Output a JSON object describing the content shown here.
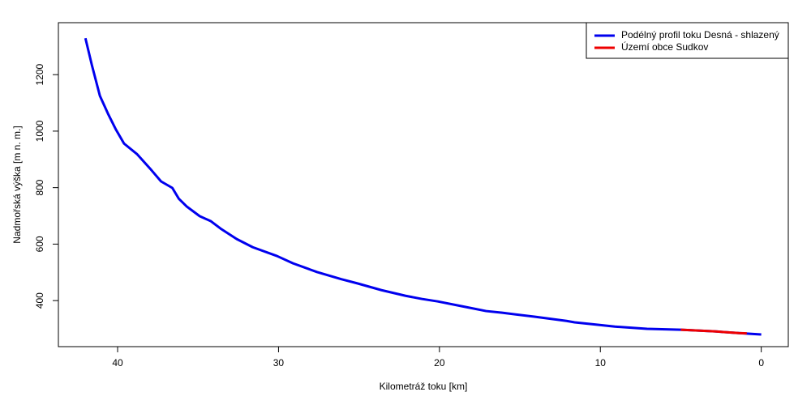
{
  "chart_data": {
    "type": "line",
    "xlabel": "Kilometráž toku [km]",
    "ylabel": "Nadmořská výška [m n. m.]",
    "xlim": [
      43.68,
      -1.68
    ],
    "xticks": [
      40,
      30,
      20,
      10,
      0
    ],
    "ylim": [
      237,
      1384
    ],
    "yticks": [
      400,
      600,
      800,
      1000,
      1200
    ],
    "legend": "top-right",
    "series": [
      {
        "name": "Podélný profil toku Desná - shlazený",
        "color": "#0000ee",
        "x": [
          42,
          41.6,
          41.1,
          40.6,
          40.1,
          39.6,
          38.8,
          37.9,
          37.3,
          36.6,
          36.2,
          35.7,
          34.9,
          34.2,
          33.6,
          32.6,
          31.6,
          30.1,
          29.1,
          27.6,
          26.1,
          25.1,
          23.6,
          22.1,
          21.1,
          20.1,
          18.6,
          17.1,
          16.1,
          14.1,
          12.1,
          11.6,
          10.1,
          9.1,
          7.1,
          5.0,
          2.9,
          1.4,
          0
        ],
        "values": [
          1329,
          1234,
          1125,
          1062,
          1005,
          956,
          919,
          862,
          822,
          799,
          761,
          733,
          699,
          681,
          655,
          618,
          589,
          558,
          532,
          501,
          476,
          461,
          437,
          417,
          406,
          397,
          380,
          363,
          357,
          343,
          328,
          323,
          314,
          308,
          300,
          297,
          291,
          285,
          280
        ]
      },
      {
        "name": "Území obce Sudkov",
        "color": "#ee0000",
        "x": [
          5.0,
          2.9,
          1.4,
          0.9
        ],
        "values": [
          297,
          291,
          285,
          284
        ]
      }
    ]
  }
}
